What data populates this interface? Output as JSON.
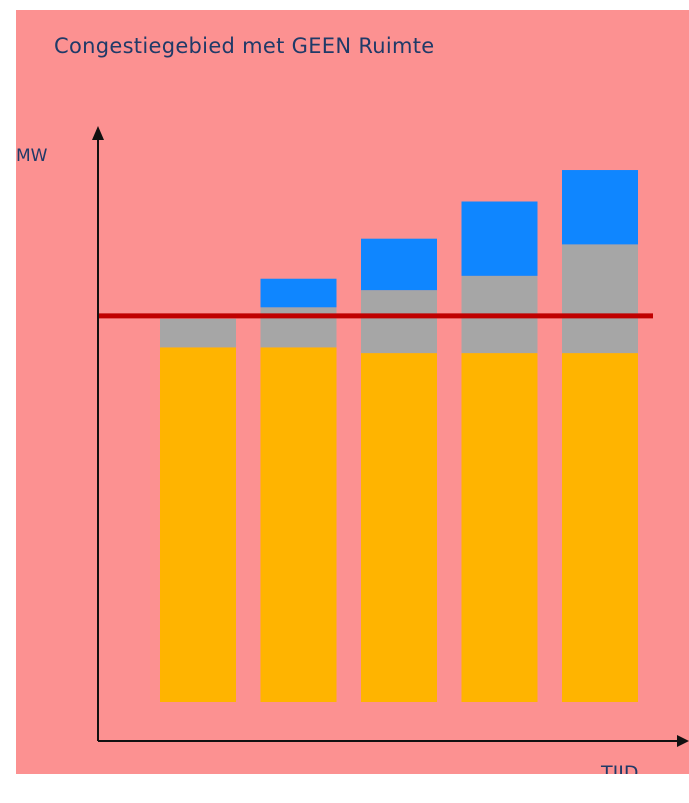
{
  "colors": {
    "background": "#fc9191",
    "text": "#1f3a68",
    "axis": "#111111",
    "limit_line": "#c00000"
  },
  "chart_data": {
    "type": "bar",
    "stacked": true,
    "title": "Congestiegebied met GEEN Ruimte",
    "xlabel": "TIJD",
    "ylabel": "MW",
    "categories": [
      "",
      "",
      "",
      "",
      ""
    ],
    "ylim": [
      0,
      100
    ],
    "grid": false,
    "legend": "none",
    "series": [
      {
        "color": "#ffb400",
        "values": [
          62,
          62,
          61,
          61,
          61
        ]
      },
      {
        "color": "#a6a6a6",
        "values": [
          5,
          7,
          11,
          13.5,
          19
        ]
      },
      {
        "color": "#0f86ff",
        "values": [
          0,
          5,
          9,
          13,
          13
        ]
      }
    ],
    "limit_line": {
      "value": 67.5,
      "color": "#c00000"
    }
  }
}
